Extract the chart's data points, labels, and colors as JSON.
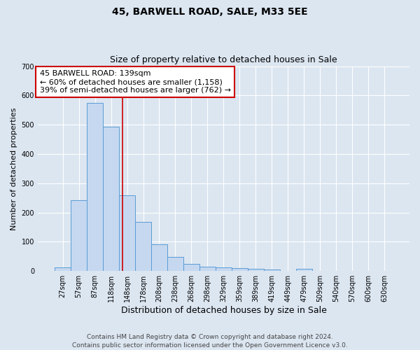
{
  "title": "45, BARWELL ROAD, SALE, M33 5EE",
  "subtitle": "Size of property relative to detached houses in Sale",
  "xlabel": "Distribution of detached houses by size in Sale",
  "ylabel": "Number of detached properties",
  "bar_labels": [
    "27sqm",
    "57sqm",
    "87sqm",
    "118sqm",
    "148sqm",
    "178sqm",
    "208sqm",
    "238sqm",
    "268sqm",
    "298sqm",
    "329sqm",
    "359sqm",
    "389sqm",
    "419sqm",
    "449sqm",
    "479sqm",
    "509sqm",
    "540sqm",
    "570sqm",
    "600sqm",
    "630sqm"
  ],
  "bar_values": [
    12,
    242,
    575,
    493,
    258,
    168,
    91,
    48,
    25,
    14,
    12,
    10,
    7,
    5,
    0,
    7,
    0,
    0,
    0,
    0,
    0
  ],
  "bar_color": "#c5d8f0",
  "bar_edge_color": "#5b9bd5",
  "background_color": "#dce6f1",
  "grid_color": "#ffffff",
  "annotation_line1": "45 BARWELL ROAD: 139sqm",
  "annotation_line2": "← 60% of detached houses are smaller (1,158)",
  "annotation_line3": "39% of semi-detached houses are larger (762) →",
  "annotation_box_color": "#ffffff",
  "annotation_box_edge_color": "#cc0000",
  "vline_color": "#cc0000",
  "vline_position": 3.73,
  "ylim": [
    0,
    700
  ],
  "yticks": [
    0,
    100,
    200,
    300,
    400,
    500,
    600,
    700
  ],
  "footnote_line1": "Contains HM Land Registry data © Crown copyright and database right 2024.",
  "footnote_line2": "Contains public sector information licensed under the Open Government Licence v3.0.",
  "title_fontsize": 10,
  "subtitle_fontsize": 9,
  "xlabel_fontsize": 9,
  "ylabel_fontsize": 8,
  "tick_fontsize": 7,
  "annotation_fontsize": 8,
  "footnote_fontsize": 6.5
}
